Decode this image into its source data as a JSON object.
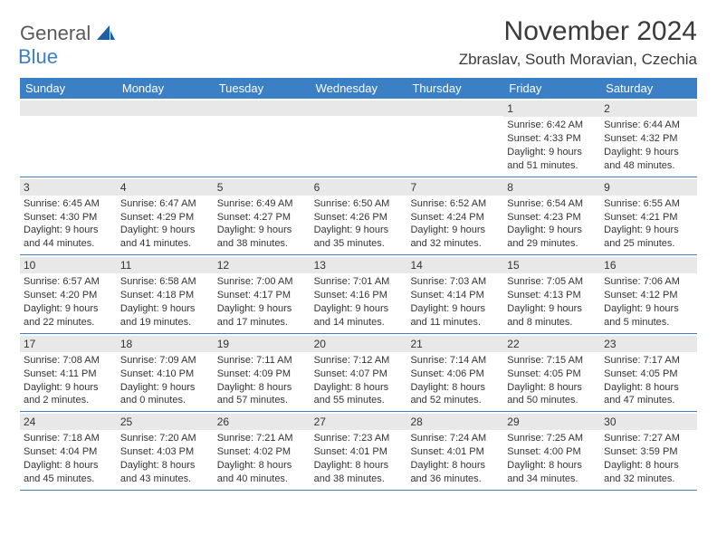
{
  "logo": {
    "text1": "General",
    "text2": "Blue",
    "sail_color": "#1f5fa8"
  },
  "title": "November 2024",
  "location": "Zbraslav, South Moravian, Czechia",
  "header_bg": "#3b7fc4",
  "daynum_bg": "#e8e8e8",
  "border_color": "#3b7fc4",
  "text_color": "#333333",
  "day_names": [
    "Sunday",
    "Monday",
    "Tuesday",
    "Wednesday",
    "Thursday",
    "Friday",
    "Saturday"
  ],
  "weeks": [
    [
      {
        "empty": true
      },
      {
        "empty": true
      },
      {
        "empty": true
      },
      {
        "empty": true
      },
      {
        "empty": true
      },
      {
        "n": "1",
        "sr": "6:42 AM",
        "ss": "4:33 PM",
        "dl": "9 hours and 51 minutes."
      },
      {
        "n": "2",
        "sr": "6:44 AM",
        "ss": "4:32 PM",
        "dl": "9 hours and 48 minutes."
      }
    ],
    [
      {
        "n": "3",
        "sr": "6:45 AM",
        "ss": "4:30 PM",
        "dl": "9 hours and 44 minutes."
      },
      {
        "n": "4",
        "sr": "6:47 AM",
        "ss": "4:29 PM",
        "dl": "9 hours and 41 minutes."
      },
      {
        "n": "5",
        "sr": "6:49 AM",
        "ss": "4:27 PM",
        "dl": "9 hours and 38 minutes."
      },
      {
        "n": "6",
        "sr": "6:50 AM",
        "ss": "4:26 PM",
        "dl": "9 hours and 35 minutes."
      },
      {
        "n": "7",
        "sr": "6:52 AM",
        "ss": "4:24 PM",
        "dl": "9 hours and 32 minutes."
      },
      {
        "n": "8",
        "sr": "6:54 AM",
        "ss": "4:23 PM",
        "dl": "9 hours and 29 minutes."
      },
      {
        "n": "9",
        "sr": "6:55 AM",
        "ss": "4:21 PM",
        "dl": "9 hours and 25 minutes."
      }
    ],
    [
      {
        "n": "10",
        "sr": "6:57 AM",
        "ss": "4:20 PM",
        "dl": "9 hours and 22 minutes."
      },
      {
        "n": "11",
        "sr": "6:58 AM",
        "ss": "4:18 PM",
        "dl": "9 hours and 19 minutes."
      },
      {
        "n": "12",
        "sr": "7:00 AM",
        "ss": "4:17 PM",
        "dl": "9 hours and 17 minutes."
      },
      {
        "n": "13",
        "sr": "7:01 AM",
        "ss": "4:16 PM",
        "dl": "9 hours and 14 minutes."
      },
      {
        "n": "14",
        "sr": "7:03 AM",
        "ss": "4:14 PM",
        "dl": "9 hours and 11 minutes."
      },
      {
        "n": "15",
        "sr": "7:05 AM",
        "ss": "4:13 PM",
        "dl": "9 hours and 8 minutes."
      },
      {
        "n": "16",
        "sr": "7:06 AM",
        "ss": "4:12 PM",
        "dl": "9 hours and 5 minutes."
      }
    ],
    [
      {
        "n": "17",
        "sr": "7:08 AM",
        "ss": "4:11 PM",
        "dl": "9 hours and 2 minutes."
      },
      {
        "n": "18",
        "sr": "7:09 AM",
        "ss": "4:10 PM",
        "dl": "9 hours and 0 minutes."
      },
      {
        "n": "19",
        "sr": "7:11 AM",
        "ss": "4:09 PM",
        "dl": "8 hours and 57 minutes."
      },
      {
        "n": "20",
        "sr": "7:12 AM",
        "ss": "4:07 PM",
        "dl": "8 hours and 55 minutes."
      },
      {
        "n": "21",
        "sr": "7:14 AM",
        "ss": "4:06 PM",
        "dl": "8 hours and 52 minutes."
      },
      {
        "n": "22",
        "sr": "7:15 AM",
        "ss": "4:05 PM",
        "dl": "8 hours and 50 minutes."
      },
      {
        "n": "23",
        "sr": "7:17 AM",
        "ss": "4:05 PM",
        "dl": "8 hours and 47 minutes."
      }
    ],
    [
      {
        "n": "24",
        "sr": "7:18 AM",
        "ss": "4:04 PM",
        "dl": "8 hours and 45 minutes."
      },
      {
        "n": "25",
        "sr": "7:20 AM",
        "ss": "4:03 PM",
        "dl": "8 hours and 43 minutes."
      },
      {
        "n": "26",
        "sr": "7:21 AM",
        "ss": "4:02 PM",
        "dl": "8 hours and 40 minutes."
      },
      {
        "n": "27",
        "sr": "7:23 AM",
        "ss": "4:01 PM",
        "dl": "8 hours and 38 minutes."
      },
      {
        "n": "28",
        "sr": "7:24 AM",
        "ss": "4:01 PM",
        "dl": "8 hours and 36 minutes."
      },
      {
        "n": "29",
        "sr": "7:25 AM",
        "ss": "4:00 PM",
        "dl": "8 hours and 34 minutes."
      },
      {
        "n": "30",
        "sr": "7:27 AM",
        "ss": "3:59 PM",
        "dl": "8 hours and 32 minutes."
      }
    ]
  ],
  "labels": {
    "sunrise": "Sunrise:",
    "sunset": "Sunset:",
    "daylight": "Daylight:"
  }
}
